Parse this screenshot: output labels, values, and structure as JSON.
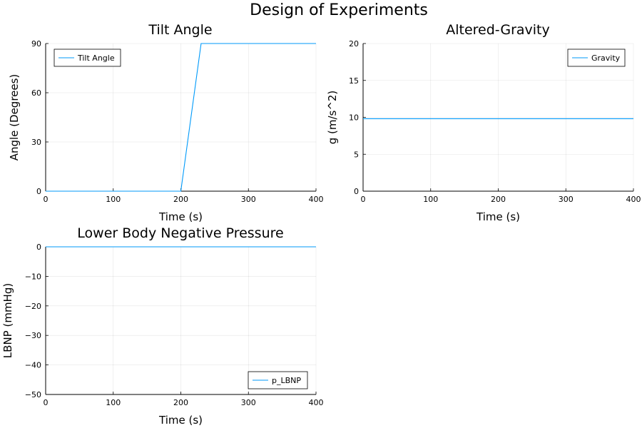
{
  "figure": {
    "title": "Design of Experiments"
  },
  "colors": {
    "series": "#009AFA"
  },
  "chart_data": [
    {
      "type": "line",
      "title": "Tilt Angle",
      "xlabel": "Time (s)",
      "ylabel": "Angle (Degrees)",
      "xlim": [
        0,
        400
      ],
      "ylim": [
        0,
        90
      ],
      "xticks": [
        0,
        100,
        200,
        300,
        400
      ],
      "yticks": [
        0,
        30,
        60,
        90
      ],
      "grid": true,
      "legend": {
        "position": "top-left"
      },
      "series": [
        {
          "name": "Tilt Angle",
          "x": [
            0,
            200,
            230,
            400
          ],
          "y": [
            0,
            0,
            90,
            90
          ]
        }
      ]
    },
    {
      "type": "line",
      "title": "Altered-Gravity",
      "xlabel": "Time (s)",
      "ylabel": "g (m/s^2)",
      "xlim": [
        0,
        400
      ],
      "ylim": [
        0,
        20
      ],
      "xticks": [
        0,
        100,
        200,
        300,
        400
      ],
      "yticks": [
        0,
        5,
        10,
        15,
        20
      ],
      "grid": true,
      "legend": {
        "position": "top-right"
      },
      "series": [
        {
          "name": "Gravity",
          "x": [
            0,
            400
          ],
          "y": [
            9.81,
            9.81
          ]
        }
      ]
    },
    {
      "type": "line",
      "title": "Lower Body Negative Pressure",
      "xlabel": "Time (s)",
      "ylabel": "LBNP (mmHg)",
      "xlim": [
        0,
        400
      ],
      "ylim": [
        -50,
        0
      ],
      "xticks": [
        0,
        100,
        200,
        300,
        400
      ],
      "yticks": [
        -50,
        -40,
        -30,
        -20,
        -10,
        0
      ],
      "yticklabels": [
        "−50",
        "−40",
        "−30",
        "−20",
        "−10",
        "0"
      ],
      "grid": true,
      "legend": {
        "position": "bottom-right"
      },
      "series": [
        {
          "name": "p_LBNP",
          "x": [
            0,
            400
          ],
          "y": [
            0,
            0
          ]
        }
      ]
    }
  ]
}
